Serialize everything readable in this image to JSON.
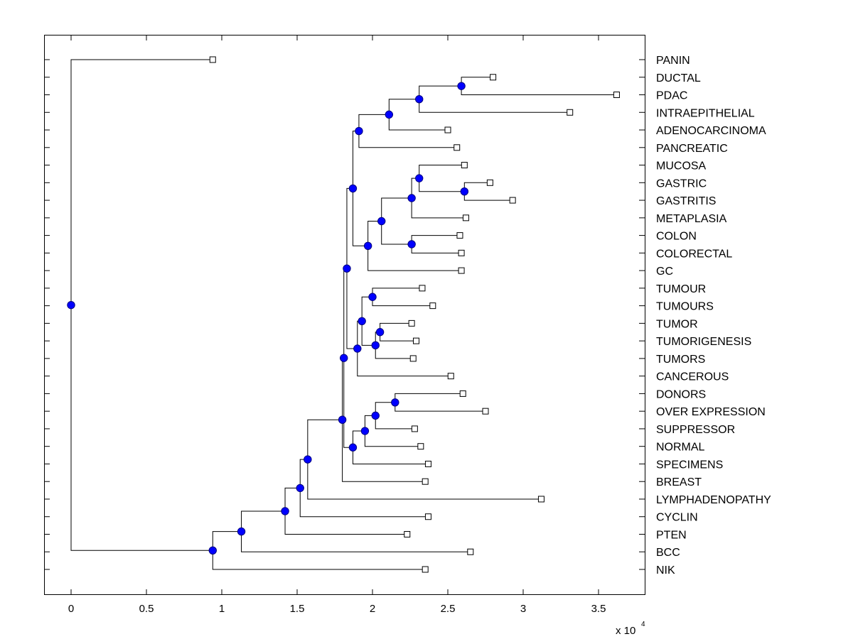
{
  "chart_data": {
    "type": "dendrogram",
    "title": "",
    "xlabel": "",
    "ylabel": "",
    "x_multiplier_label": "x 10",
    "x_multiplier_exponent": "4",
    "xlim": [
      -0.18,
      3.82
    ],
    "x_ticks": [
      0,
      0.5,
      1,
      1.5,
      2,
      2.5,
      3,
      3.5
    ],
    "x_tick_labels": [
      "0",
      "0.5",
      "1",
      "1.5",
      "2",
      "2.5",
      "3",
      "3.5"
    ],
    "leaf_order": [
      "PANIN",
      "DUCTAL",
      "PDAC",
      "INTRAEPITHELIAL",
      "ADENOCARCINOMA",
      "PANCREATIC",
      "MUCOSA",
      "GASTRIC",
      "GASTRITIS",
      "METAPLASIA",
      "COLON",
      "COLORECTAL",
      "GC",
      "TUMOUR",
      "TUMOURS",
      "TUMOR",
      "TUMORIGENESIS",
      "TUMORS",
      "CANCEROUS",
      "DONORS",
      "OVER EXPRESSION",
      "SUPPRESSOR",
      "NORMAL",
      "SPECIMENS",
      "BREAST",
      "LYMPHADENOPATHY",
      "CYCLIN",
      "PTEN",
      "BCC",
      "NIK"
    ],
    "leaves": {
      "PANIN": 0.94,
      "DUCTAL": 2.8,
      "PDAC": 3.62,
      "INTRAEPITHELIAL": 3.31,
      "ADENOCARCINOMA": 2.5,
      "PANCREATIC": 2.56,
      "MUCOSA": 2.61,
      "GASTRIC": 2.78,
      "GASTRITIS": 2.93,
      "METAPLASIA": 2.62,
      "COLON": 2.58,
      "COLORECTAL": 2.59,
      "GC": 2.59,
      "TUMOUR": 2.33,
      "TUMOURS": 2.4,
      "TUMOR": 2.26,
      "TUMORIGENESIS": 2.29,
      "TUMORS": 2.27,
      "CANCEROUS": 2.52,
      "DONORS": 2.6,
      "OVER EXPRESSION": 2.75,
      "SUPPRESSOR": 2.28,
      "NORMAL": 2.32,
      "SPECIMENS": 2.37,
      "BREAST": 2.35,
      "LYMPHADENOPATHY": 3.12,
      "CYCLIN": 2.37,
      "PTEN": 2.23,
      "BCC": 2.65,
      "NIK": 2.35
    },
    "nodes": [
      {
        "id": "n1",
        "x": 2.59,
        "children": [
          "DUCTAL",
          "PDAC"
        ]
      },
      {
        "id": "n2",
        "x": 2.31,
        "children": [
          "n1",
          "INTRAEPITHELIAL"
        ]
      },
      {
        "id": "n3",
        "x": 2.11,
        "children": [
          "n2",
          "ADENOCARCINOMA"
        ]
      },
      {
        "id": "n4",
        "x": 1.91,
        "children": [
          "n3",
          "PANCREATIC"
        ]
      },
      {
        "id": "n5",
        "x": 2.61,
        "children": [
          "GASTRIC",
          "GASTRITIS"
        ]
      },
      {
        "id": "n6",
        "x": 2.31,
        "children": [
          "MUCOSA",
          "n5"
        ]
      },
      {
        "id": "n7",
        "x": 2.26,
        "children": [
          "n6",
          "METAPLASIA"
        ]
      },
      {
        "id": "n8",
        "x": 2.26,
        "children": [
          "COLON",
          "COLORECTAL"
        ]
      },
      {
        "id": "n9",
        "x": 2.06,
        "children": [
          "n7",
          "n8"
        ]
      },
      {
        "id": "n10",
        "x": 1.97,
        "children": [
          "n9",
          "GC"
        ]
      },
      {
        "id": "n11",
        "x": 1.87,
        "children": [
          "n4",
          "n10"
        ]
      },
      {
        "id": "n12",
        "x": 2.0,
        "children": [
          "TUMOUR",
          "TUMOURS"
        ]
      },
      {
        "id": "n13",
        "x": 2.05,
        "children": [
          "TUMOR",
          "TUMORIGENESIS"
        ]
      },
      {
        "id": "n14",
        "x": 2.02,
        "children": [
          "n13",
          "TUMORS"
        ]
      },
      {
        "id": "n15",
        "x": 1.93,
        "children": [
          "n12",
          "n14"
        ]
      },
      {
        "id": "n16",
        "x": 1.9,
        "children": [
          "n15",
          "CANCEROUS"
        ]
      },
      {
        "id": "n17",
        "x": 1.83,
        "children": [
          "n11",
          "n16"
        ]
      },
      {
        "id": "n18",
        "x": 2.15,
        "children": [
          "DONORS",
          "OVER EXPRESSION"
        ]
      },
      {
        "id": "n19",
        "x": 2.02,
        "children": [
          "n18",
          "SUPPRESSOR"
        ]
      },
      {
        "id": "n20",
        "x": 1.95,
        "children": [
          "n19",
          "NORMAL"
        ]
      },
      {
        "id": "n21",
        "x": 1.87,
        "children": [
          "n20",
          "SPECIMENS"
        ]
      },
      {
        "id": "n22",
        "x": 1.81,
        "children": [
          "n17",
          "n21"
        ]
      },
      {
        "id": "n23",
        "x": 1.8,
        "children": [
          "n22",
          "BREAST"
        ]
      },
      {
        "id": "n24",
        "x": 1.57,
        "children": [
          "n23",
          "LYMPHADENOPATHY"
        ]
      },
      {
        "id": "n25",
        "x": 1.52,
        "children": [
          "n24",
          "CYCLIN"
        ]
      },
      {
        "id": "n26",
        "x": 1.42,
        "children": [
          "n25",
          "PTEN"
        ]
      },
      {
        "id": "n27",
        "x": 1.13,
        "children": [
          "n26",
          "BCC"
        ]
      },
      {
        "id": "n28",
        "x": 0.94,
        "children": [
          "n27",
          "NIK"
        ]
      },
      {
        "id": "root",
        "x": 0.0,
        "children": [
          "PANIN",
          "n28"
        ]
      }
    ],
    "colors": {
      "node_fill": "#0000ff",
      "node_stroke": "#000080",
      "leaf_fill": "#ffffff",
      "line": "#000000"
    },
    "grid": false
  }
}
